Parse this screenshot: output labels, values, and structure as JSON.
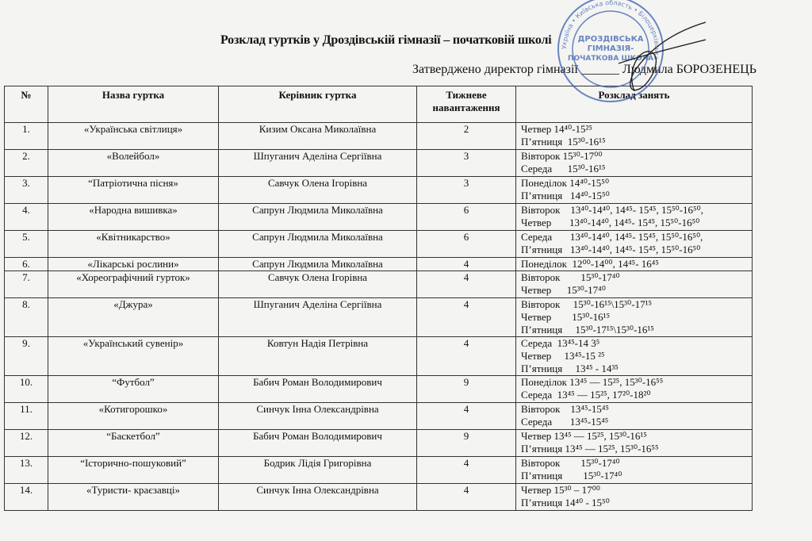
{
  "title": "Розклад гуртків у Дроздівській гімназії – початковій школі",
  "approved": "Затверджено директор гімназії ______ Людмила БОРОЗЕНЕЦЬ",
  "stamp": {
    "text": "Україна • Київська область • Дроздівська гімназія-початкова школа • Білоцерківської міської ради",
    "color": "#3a5fb0"
  },
  "headers": [
    "№",
    "Назва гуртка",
    "Керівник гуртка",
    "Тижневе навантаження",
    "Розклад занять"
  ],
  "rows": [
    {
      "n": "1.",
      "name": "«Українська світлиця»",
      "lead": "Кизим Оксана Миколаївна",
      "load": "2",
      "sched": [
        "Четвер 14⁴⁰-15²⁵",
        "П’ятниця  15³⁰-16¹⁵"
      ]
    },
    {
      "n": "2.",
      "name": "«Волейбол»",
      "lead": "Шпуганич Аделіна Сергіївна",
      "load": "3",
      "sched": [
        "Вівторок 15³⁰-17⁰⁰",
        "Середа      15³⁰-16¹⁵"
      ]
    },
    {
      "n": "3.",
      "name": "“Патріотична пісня»",
      "lead": "Савчук Олена Ігорівна",
      "load": "3",
      "sched": [
        "Понеділок 14⁴⁰-15⁵⁰",
        "П’ятниця   14⁴⁰-15⁵⁰"
      ]
    },
    {
      "n": "4.",
      "name": "«Народна вишивка»",
      "lead": "Сапрун Людмила Миколаївна",
      "load": "6",
      "sched": [
        "Вівторок    13⁴⁰-14⁴⁰, 14⁴⁵- 15⁴⁵, 15⁵⁰-16⁵⁰,",
        "Четвер       13⁴⁰-14⁴⁰, 14⁴⁵- 15⁴⁵, 15⁵⁰-16⁵⁰"
      ]
    },
    {
      "n": "5.",
      "name": "«Квітникарство»",
      "lead": "Сапрун Людмила Миколаївна",
      "load": "6",
      "sched": [
        "Середа       13⁴⁰-14⁴⁰, 14⁴⁵- 15⁴⁵, 15⁵⁰-16⁵⁰,",
        "П’ятниця   13⁴⁰-14⁴⁰, 14⁴⁵- 15⁴⁵, 15⁵⁰-16⁵⁰"
      ]
    },
    {
      "n": "6.",
      "name": "«Лікарські рослини»",
      "lead": "Сапрун Людмила Миколаївна",
      "load": "4",
      "sched": [
        "Понеділок  12⁰⁰-14⁰⁰, 14⁴⁵- 16⁴⁵"
      ]
    },
    {
      "n": "7.",
      "name": "«Хореографічний гурток»",
      "lead": "Савчук Олена Ігорівна",
      "load": "4",
      "sched": [
        "Вівторок        15³⁰-17⁴⁰",
        "Четвер      15³⁰-17⁴⁰"
      ]
    },
    {
      "n": "8.",
      "name": "«Джура»",
      "lead": "Шпуганич Аделіна Сергіївна",
      "load": "4",
      "sched": [
        "Вівторок     15³⁰-16¹⁵\\15³⁰-17¹⁵",
        "Четвер        15³⁰-16¹⁵",
        "П’ятниця     15³⁰-17¹⁵\\15³⁰-16¹⁵"
      ]
    },
    {
      "n": "9.",
      "name": "«Український сувенір»",
      "lead": "Ковтун Надія Петрівна",
      "load": "4",
      "sched": [
        "Середа  13⁴⁵-14 3⁵",
        "Четвер     13⁴⁵-15 ²⁵",
        "П’ятниця     13⁴⁵ - 14³⁵"
      ]
    },
    {
      "n": "10.",
      "name": "“Футбол”",
      "lead": "Бабич Роман Володимирович",
      "load": "9",
      "sched": [
        "Понеділок 13⁴⁵ — 15²⁵, 15³⁰-16⁵⁵",
        "Середа  13⁴⁵ — 15²⁵, 17²⁰-18²⁰"
      ]
    },
    {
      "n": "11.",
      "name": "«Котигорошко»",
      "lead": "Синчук Інна Олександрівна",
      "load": "4",
      "sched": [
        "Вівторок    13⁴⁵-15⁴⁵",
        "Середа       13⁴⁵-15⁴⁵"
      ]
    },
    {
      "n": "12.",
      "name": "“Баскетбол”",
      "lead": "Бабич Роман Володимирович",
      "load": "9",
      "sched": [
        "Четвер 13⁴⁵ — 15²⁵, 15³⁰-16¹⁵",
        "П’ятниця 13⁴⁵ — 15²⁵, 15³⁰-16⁵⁵"
      ]
    },
    {
      "n": "13.",
      "name": "“Історично-пошуковий”",
      "lead": "Бодрик Лідія Григорівна",
      "load": "4",
      "sched": [
        "Вівторок        15³⁰-17⁴⁰",
        "П’ятниця        15³⁰-17⁴⁰"
      ]
    },
    {
      "n": "14.",
      "name": "«Туристи- краєзавці»",
      "lead": "Синчук Інна Олександрівна",
      "load": "4",
      "sched": [
        "Четвер 15³⁰ – 17⁰⁰",
        "П’ятниця 14⁴⁰ - 15⁵⁰"
      ]
    }
  ]
}
